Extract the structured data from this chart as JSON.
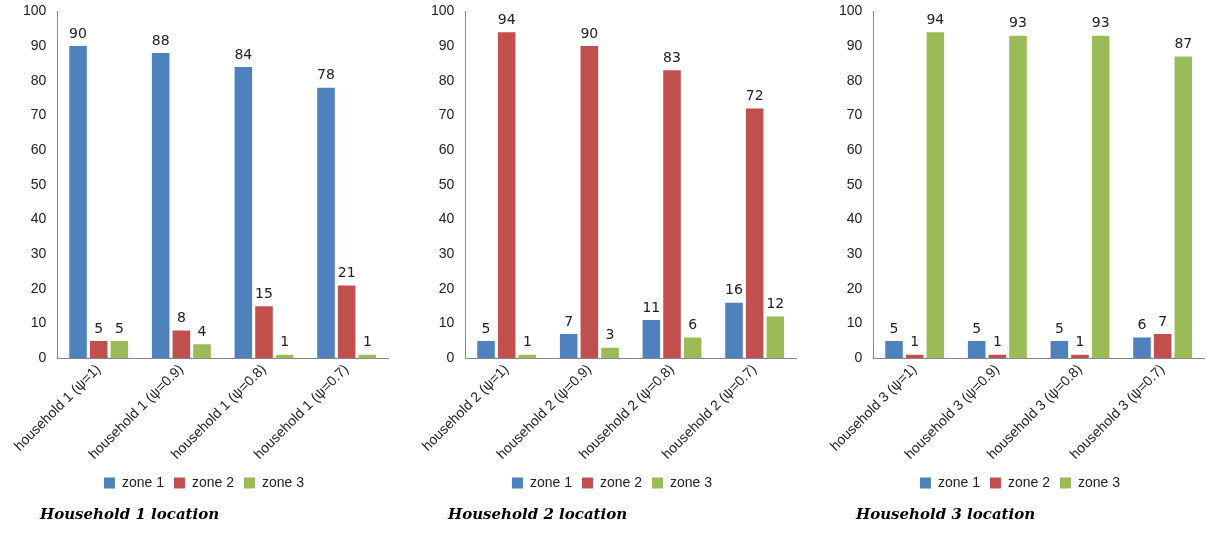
{
  "chart_data": [
    {
      "type": "bar",
      "categories": [
        "household 1 (ψ=1)",
        "household 1 (ψ=0.9)",
        "household 1 (ψ=0.8)",
        "household 1 (ψ=0.7)"
      ],
      "series": [
        {
          "name": "zone 1",
          "color": "#4f81bd",
          "values": [
            90,
            88,
            84,
            78
          ]
        },
        {
          "name": "zone 2",
          "color": "#c0504d",
          "values": [
            5,
            8,
            15,
            21
          ]
        },
        {
          "name": "zone 3",
          "color": "#9bbb59",
          "values": [
            5,
            4,
            1,
            1
          ]
        }
      ],
      "ylim": [
        0,
        100
      ],
      "yticks": [
        0,
        10,
        20,
        30,
        40,
        50,
        60,
        70,
        80,
        90,
        100
      ],
      "grid": false,
      "legend": "bottom",
      "data_labels": true,
      "annotations": [
        "Household 1 location"
      ]
    },
    {
      "type": "bar",
      "categories": [
        "household 2 (ψ=1)",
        "household 2 (ψ=0.9)",
        "household 2 (ψ=0.8)",
        "household 2 (ψ=0.7)"
      ],
      "series": [
        {
          "name": "zone 1",
          "color": "#4f81bd",
          "values": [
            5,
            7,
            11,
            16
          ]
        },
        {
          "name": "zone 2",
          "color": "#c0504d",
          "values": [
            94,
            90,
            83,
            72
          ]
        },
        {
          "name": "zone 3",
          "color": "#9bbb59",
          "values": [
            1,
            3,
            6,
            12
          ]
        }
      ],
      "ylim": [
        0,
        100
      ],
      "yticks": [
        0,
        10,
        20,
        30,
        40,
        50,
        60,
        70,
        80,
        90,
        100
      ],
      "grid": false,
      "legend": "bottom",
      "data_labels": true,
      "annotations": [
        "Household 2 location"
      ]
    },
    {
      "type": "bar",
      "categories": [
        "household 3 (ψ=1)",
        "household 3 (ψ=0.9)",
        "household 3 (ψ=0.8)",
        "household 3 (ψ=0.7)"
      ],
      "series": [
        {
          "name": "zone 1",
          "color": "#4f81bd",
          "values": [
            5,
            5,
            5,
            6
          ]
        },
        {
          "name": "zone 2",
          "color": "#c0504d",
          "values": [
            1,
            1,
            1,
            7
          ]
        },
        {
          "name": "zone 3",
          "color": "#9bbb59",
          "values": [
            94,
            93,
            93,
            87
          ]
        }
      ],
      "ylim": [
        0,
        100
      ],
      "yticks": [
        0,
        10,
        20,
        30,
        40,
        50,
        60,
        70,
        80,
        90,
        100
      ],
      "grid": false,
      "legend": "bottom",
      "data_labels": true,
      "annotations": [
        "Household 3 location"
      ]
    }
  ]
}
